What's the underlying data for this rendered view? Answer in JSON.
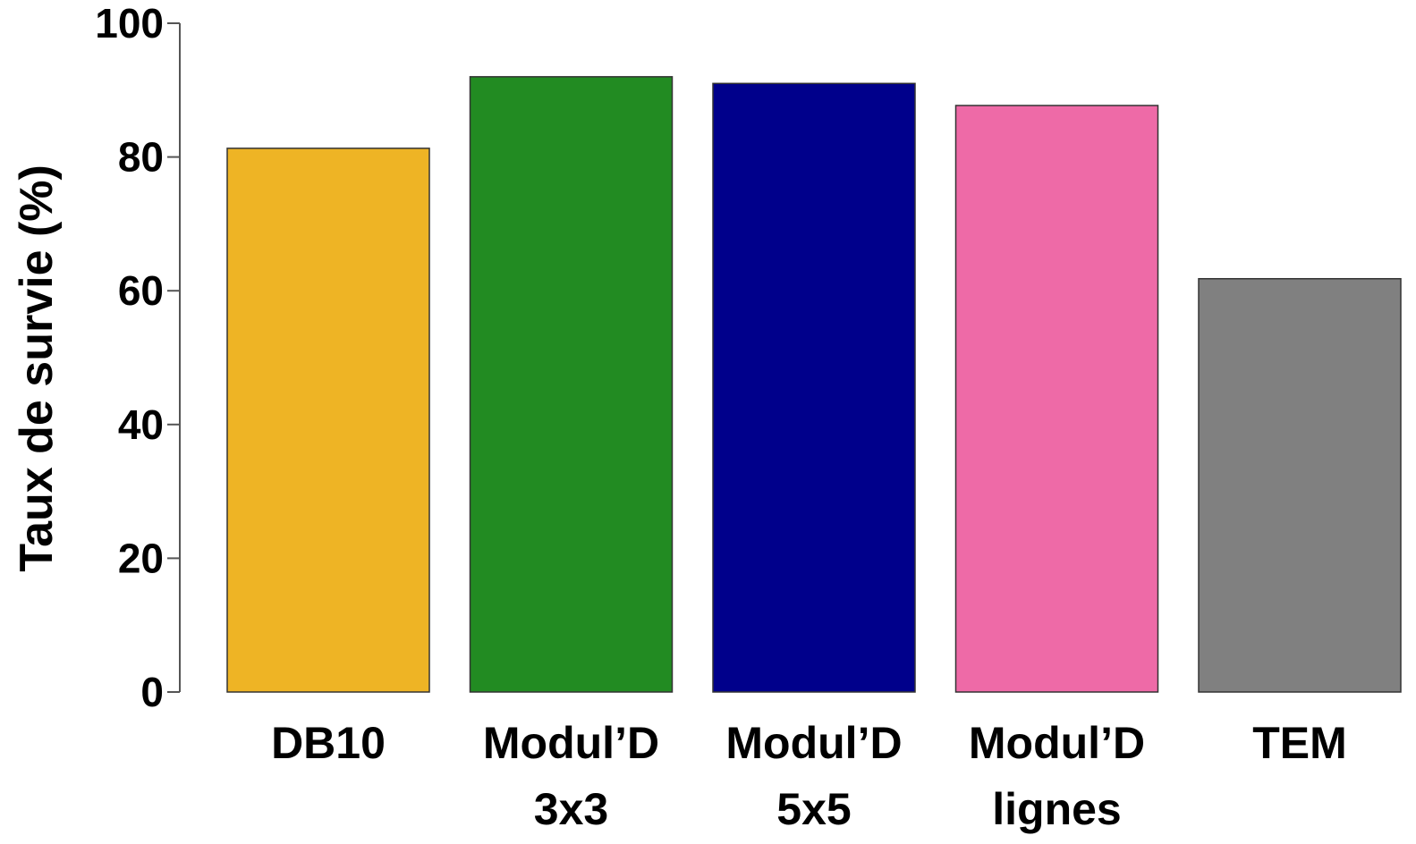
{
  "chart_data": {
    "type": "bar",
    "title": "",
    "xlabel": "",
    "ylabel": "Taux de survie (%)",
    "ylim": [
      0,
      100
    ],
    "yticks": [
      0,
      20,
      40,
      60,
      80,
      100
    ],
    "grid": false,
    "categories": [
      [
        "DB10"
      ],
      [
        "Modul’D",
        "3x3"
      ],
      [
        "Modul’D",
        "5x5"
      ],
      [
        "Modul’D",
        "lignes"
      ],
      [
        "TEM"
      ]
    ],
    "values": [
      81.3,
      92.0,
      91.0,
      87.7,
      61.8
    ],
    "colors": [
      "#EEB425",
      "#228B22",
      "#00008B",
      "#EE6AA7",
      "#808080"
    ],
    "bar_stroke": "#333333",
    "axis_color": "#555555"
  }
}
